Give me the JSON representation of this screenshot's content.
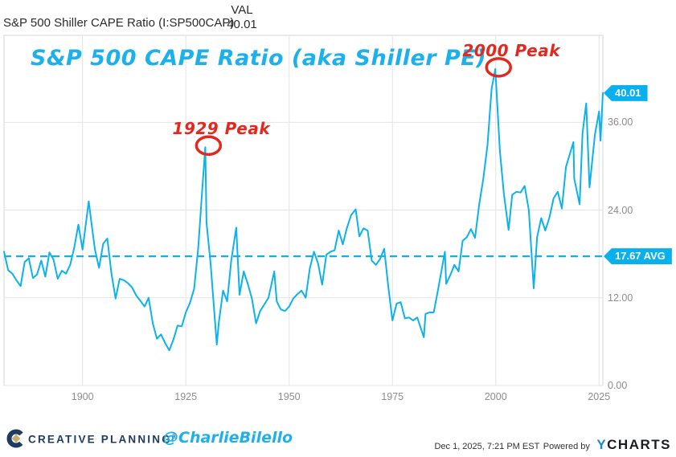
{
  "header": {
    "series_label": "S&P 500 Shiller CAPE Ratio (I:SP500CAP)",
    "val_column": "VAL",
    "val_value": "40.01"
  },
  "chart_data": {
    "type": "line",
    "title": "S&P 500 CAPE Ratio (aka Shiller PE)",
    "series_name": "S&P 500 Shiller CAPE Ratio (I:SP500CAP)",
    "latest_value": 40.01,
    "average": {
      "value": 17.67,
      "label": "17.67 AVG",
      "style": "dashed"
    },
    "xlim": [
      1881,
      2025.92
    ],
    "ylim": [
      0,
      47.9
    ],
    "x_ticks": [
      1900,
      1925,
      1950,
      1975,
      2000,
      2025
    ],
    "x_tick_labels": [
      "1900",
      "1925",
      "1950",
      "1975",
      "2000",
      "2025"
    ],
    "y_ticks": [
      0,
      12,
      24,
      36
    ],
    "y_tick_labels": [
      "0.00",
      "12.00",
      "24.00",
      "36.00"
    ],
    "grid": true,
    "legend": "none",
    "points": [
      [
        1881,
        18.3
      ],
      [
        1882,
        15.8
      ],
      [
        1883,
        15.3
      ],
      [
        1884,
        14.4
      ],
      [
        1885,
        13.6
      ],
      [
        1886,
        16.9
      ],
      [
        1887,
        17.4
      ],
      [
        1888,
        14.7
      ],
      [
        1889,
        15.2
      ],
      [
        1890,
        17.1
      ],
      [
        1891,
        14.9
      ],
      [
        1892,
        18.2
      ],
      [
        1893,
        17.2
      ],
      [
        1894,
        14.6
      ],
      [
        1895,
        15.7
      ],
      [
        1896,
        15.3
      ],
      [
        1897,
        16.5
      ],
      [
        1898,
        18.9
      ],
      [
        1899,
        22.0
      ],
      [
        1900,
        18.6
      ],
      [
        1901.5,
        25.2
      ],
      [
        1902,
        22.9
      ],
      [
        1903,
        18.6
      ],
      [
        1904,
        16.1
      ],
      [
        1905,
        19.4
      ],
      [
        1906,
        20.1
      ],
      [
        1907,
        15.3
      ],
      [
        1908,
        11.9
      ],
      [
        1909,
        14.6
      ],
      [
        1910,
        14.4
      ],
      [
        1911,
        14.0
      ],
      [
        1912,
        13.4
      ],
      [
        1913,
        12.3
      ],
      [
        1914,
        11.6
      ],
      [
        1915,
        10.8
      ],
      [
        1916,
        12.0
      ],
      [
        1917,
        8.5
      ],
      [
        1918,
        6.4
      ],
      [
        1919,
        7.0
      ],
      [
        1920,
        5.8
      ],
      [
        1921,
        4.8
      ],
      [
        1922,
        6.3
      ],
      [
        1923,
        8.2
      ],
      [
        1924,
        8.1
      ],
      [
        1925,
        10.0
      ],
      [
        1926,
        11.3
      ],
      [
        1927,
        13.2
      ],
      [
        1928,
        18.8
      ],
      [
        1929,
        27.1
      ],
      [
        1929.7,
        32.6
      ],
      [
        1930,
        22.3
      ],
      [
        1931,
        16.7
      ],
      [
        1932.5,
        5.6
      ],
      [
        1933,
        8.7
      ],
      [
        1934,
        13.0
      ],
      [
        1935,
        11.5
      ],
      [
        1936,
        17.1
      ],
      [
        1937.2,
        21.6
      ],
      [
        1938,
        12.4
      ],
      [
        1939,
        15.6
      ],
      [
        1940,
        13.9
      ],
      [
        1941,
        11.9
      ],
      [
        1942,
        8.5
      ],
      [
        1943,
        10.2
      ],
      [
        1944,
        11.1
      ],
      [
        1945,
        12.0
      ],
      [
        1946.4,
        15.6
      ],
      [
        1947,
        11.5
      ],
      [
        1948,
        10.4
      ],
      [
        1949,
        10.2
      ],
      [
        1950,
        10.8
      ],
      [
        1951,
        11.9
      ],
      [
        1952,
        12.5
      ],
      [
        1953,
        13.0
      ],
      [
        1954,
        12.0
      ],
      [
        1955,
        16.0
      ],
      [
        1956,
        18.3
      ],
      [
        1957,
        16.7
      ],
      [
        1958,
        13.8
      ],
      [
        1959,
        17.9
      ],
      [
        1960,
        18.3
      ],
      [
        1961,
        18.5
      ],
      [
        1962,
        21.2
      ],
      [
        1963,
        19.3
      ],
      [
        1964,
        21.6
      ],
      [
        1965,
        23.3
      ],
      [
        1966.1,
        24.1
      ],
      [
        1967,
        20.4
      ],
      [
        1968,
        21.5
      ],
      [
        1969,
        21.2
      ],
      [
        1970,
        17.1
      ],
      [
        1971,
        16.5
      ],
      [
        1972,
        17.3
      ],
      [
        1973,
        18.7
      ],
      [
        1974,
        13.5
      ],
      [
        1975,
        8.9
      ],
      [
        1976,
        11.2
      ],
      [
        1977,
        11.4
      ],
      [
        1978,
        9.2
      ],
      [
        1979,
        9.3
      ],
      [
        1980,
        8.9
      ],
      [
        1981,
        9.3
      ],
      [
        1982.6,
        6.6
      ],
      [
        1983,
        9.8
      ],
      [
        1984,
        10.0
      ],
      [
        1985,
        10.0
      ],
      [
        1986,
        13.0
      ],
      [
        1987.7,
        18.3
      ],
      [
        1988,
        13.9
      ],
      [
        1989,
        15.1
      ],
      [
        1990,
        16.5
      ],
      [
        1991,
        15.6
      ],
      [
        1992,
        19.8
      ],
      [
        1993,
        20.3
      ],
      [
        1994,
        21.4
      ],
      [
        1995,
        20.2
      ],
      [
        1996,
        24.8
      ],
      [
        1997,
        28.3
      ],
      [
        1998,
        32.9
      ],
      [
        1999,
        40.6
      ],
      [
        1999.9,
        43.3
      ],
      [
        2001,
        32.1
      ],
      [
        2002,
        26.1
      ],
      [
        2003.1,
        21.3
      ],
      [
        2004,
        26.1
      ],
      [
        2005,
        26.5
      ],
      [
        2006,
        26.4
      ],
      [
        2007,
        27.3
      ],
      [
        2008,
        24.0
      ],
      [
        2009.2,
        13.3
      ],
      [
        2010,
        20.3
      ],
      [
        2011,
        22.9
      ],
      [
        2012,
        21.2
      ],
      [
        2013,
        23.0
      ],
      [
        2014,
        25.6
      ],
      [
        2015,
        26.5
      ],
      [
        2016,
        24.2
      ],
      [
        2017,
        29.9
      ],
      [
        2018.8,
        33.3
      ],
      [
        2019,
        28.3
      ],
      [
        2020.3,
        24.8
      ],
      [
        2021,
        34.5
      ],
      [
        2021.9,
        38.6
      ],
      [
        2022.7,
        27.1
      ],
      [
        2023,
        28.8
      ],
      [
        2024,
        34.3
      ],
      [
        2025,
        37.5
      ],
      [
        2025.35,
        33.5
      ],
      [
        2025.92,
        40.01
      ]
    ],
    "annotations": [
      {
        "label": "1929 Peak",
        "x": 1929.7,
        "y": 32.6
      },
      {
        "label": "2000 Peak",
        "x": 1999.9,
        "y": 43.3
      }
    ],
    "badges": {
      "latest": "40.01",
      "average": "17.67 AVG"
    }
  },
  "footer": {
    "brand": "CREATIVE PLANNING",
    "reg_mark": "®",
    "handle": "@CharlieBilello",
    "timestamp": "Dec 1, 2025, 7:21 PM EST",
    "powered_by": "Powered by",
    "ycharts_y": "Y",
    "ycharts_rest": "CHARTS"
  },
  "colors": {
    "line": "#0cb2ec",
    "title_cyan": "#1cb1ec",
    "annotation_red": "#e5281f",
    "badge_bg": "#09b0ee",
    "grid": "#e4e4e4",
    "axis_line": "#d6d6d6",
    "tick_text": "#8c8c8c",
    "brand_navy": "#1d3c5f",
    "brand_gold": "#c9ab71",
    "ycharts_blue": "#1788d8"
  }
}
